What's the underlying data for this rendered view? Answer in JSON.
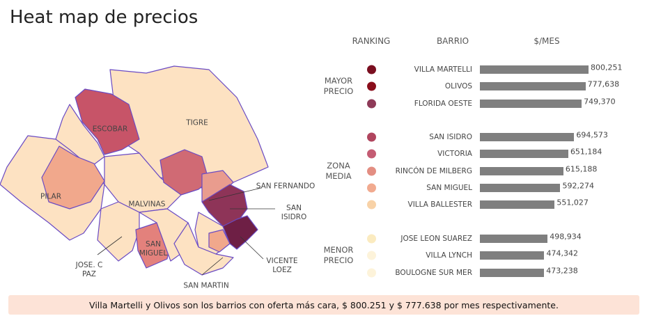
{
  "header": {
    "title": "Heat map de precios"
  },
  "map": {
    "labels": [
      "ESCOBAR",
      "TIGRE",
      "PILAR",
      "MALVINAS",
      "SAN MIGUEL",
      "JOSE. C PAZ",
      "SAN MARTIN",
      "SAN FERNANDO",
      "SAN ISIDRO",
      "VICENTE LOEZ"
    ]
  },
  "ranking": {
    "headers": [
      "RANKING",
      "BARRIO",
      "$/MES"
    ],
    "bar_color": "#7f7f7f",
    "groups": [
      {
        "label": "MAYOR PRECIO",
        "categories": [
          "VILLA MARTELLI",
          "OLIVOS",
          "FLORIDA OESTE"
        ],
        "values": [
          800251,
          777638,
          749370
        ],
        "value_labels": [
          "800,251",
          "777,638",
          "749,370"
        ],
        "colors": [
          "#7a0f20",
          "#8a0d1b",
          "#8e3a58"
        ]
      },
      {
        "label": "ZONA MEDIA",
        "categories": [
          "SAN ISIDRO",
          "VICTORIA",
          "RINCÓN DE MILBERG",
          "SAN MIGUEL",
          "VILLA BALLESTER"
        ],
        "values": [
          694573,
          651184,
          615188,
          592274,
          551027
        ],
        "value_labels": [
          "694,573",
          "651,184",
          "615,188",
          "592,274",
          "551,027"
        ],
        "colors": [
          "#b0455e",
          "#c45c73",
          "#e38e82",
          "#f1aa8f",
          "#f8d2a7"
        ]
      },
      {
        "label": "MENOR PRECIO",
        "categories": [
          "JOSE LEON SUAREZ",
          "VILLA LYNCH",
          "BOULOGNE SUR MER"
        ],
        "values": [
          498934,
          474342,
          473238
        ],
        "value_labels": [
          "498,934",
          "474,342",
          "473,238"
        ],
        "colors": [
          "#fbebc0",
          "#fdf3da",
          "#fdf3da"
        ]
      }
    ]
  },
  "footer": {
    "text": "Villa Martelli y Olivos son los barrios con oferta más cara, $ 800.251 y $ 777.638 por mes respectivamente."
  }
}
